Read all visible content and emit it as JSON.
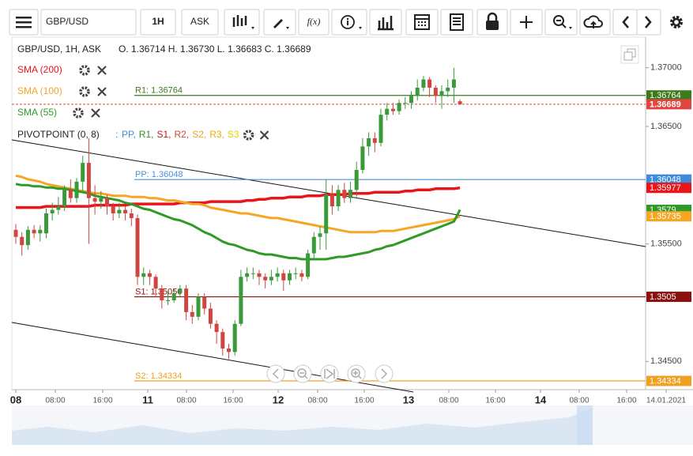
{
  "toolbar": {
    "symbol": "GBP/USD",
    "interval": "1H",
    "side": "ASK"
  },
  "chart_data": {
    "type": "candlestick",
    "title": "GBP/USD, 1H, ASK",
    "ohlc_text": "O. 1.36714 H. 1.36730 L. 1.36683 C. 1.36689",
    "up_color": "#3a9a3a",
    "down_color": "#d0453f",
    "ylim": [
      1.3426,
      1.3726
    ],
    "yticks": [
      {
        "value": 1.345,
        "label": "1.34500"
      },
      {
        "value": 1.355,
        "label": "1.35500"
      },
      {
        "value": 1.365,
        "label": "1.36500"
      },
      {
        "value": 1.37,
        "label": "1.37000"
      }
    ],
    "x_labels": [
      "08",
      "08:00",
      "16:00",
      "11",
      "08:00",
      "16:00",
      "12",
      "08:00",
      "16:00",
      "13",
      "08:00",
      "16:00",
      "14",
      "08:00",
      "16:00",
      "14.01.2021"
    ],
    "candles": [
      [
        1.3562,
        1.3567,
        1.355,
        1.3556
      ],
      [
        1.3556,
        1.356,
        1.354,
        1.3549
      ],
      [
        1.3549,
        1.3565,
        1.3545,
        1.3562
      ],
      [
        1.3562,
        1.3566,
        1.3555,
        1.3559
      ],
      [
        1.3559,
        1.3566,
        1.3552,
        1.3562
      ],
      [
        1.3559,
        1.358,
        1.3555,
        1.3576
      ],
      [
        1.3576,
        1.3585,
        1.357,
        1.3579
      ],
      [
        1.3579,
        1.359,
        1.3575,
        1.3582
      ],
      [
        1.3582,
        1.36,
        1.3578,
        1.3596
      ],
      [
        1.3596,
        1.3605,
        1.3585,
        1.3589
      ],
      [
        1.3589,
        1.3606,
        1.3585,
        1.3603
      ],
      [
        1.3603,
        1.3625,
        1.3595,
        1.3619
      ],
      [
        1.3619,
        1.364,
        1.355,
        1.3589
      ],
      [
        1.3589,
        1.36,
        1.3575,
        1.3586
      ],
      [
        1.3586,
        1.3595,
        1.358,
        1.3589
      ],
      [
        1.3589,
        1.3592,
        1.3575,
        1.3582
      ],
      [
        1.3582,
        1.3585,
        1.357,
        1.3576
      ],
      [
        1.3576,
        1.3585,
        1.3572,
        1.3579
      ],
      [
        1.3579,
        1.3582,
        1.357,
        1.3576
      ],
      [
        1.3576,
        1.358,
        1.3565,
        1.3572
      ],
      [
        1.3572,
        1.3575,
        1.3515,
        1.3522
      ],
      [
        1.3522,
        1.353,
        1.3515,
        1.3525
      ],
      [
        1.3525,
        1.3528,
        1.3515,
        1.3522
      ],
      [
        1.3522,
        1.3524,
        1.3505,
        1.3512
      ],
      [
        1.3512,
        1.3515,
        1.3495,
        1.3502
      ],
      [
        1.3502,
        1.351,
        1.3498,
        1.3502
      ],
      [
        1.3502,
        1.3512,
        1.35,
        1.3508
      ],
      [
        1.3508,
        1.3515,
        1.3505,
        1.3512
      ],
      [
        1.3512,
        1.3515,
        1.3485,
        1.3492
      ],
      [
        1.3492,
        1.3498,
        1.3482,
        1.3488
      ],
      [
        1.3488,
        1.3508,
        1.3485,
        1.3505
      ],
      [
        1.3505,
        1.3508,
        1.349,
        1.3495
      ],
      [
        1.3495,
        1.35,
        1.3478,
        1.3482
      ],
      [
        1.3482,
        1.3485,
        1.3465,
        1.3475
      ],
      [
        1.3475,
        1.3478,
        1.3455,
        1.3461
      ],
      [
        1.3461,
        1.3465,
        1.3452,
        1.3458
      ],
      [
        1.3458,
        1.3485,
        1.3455,
        1.3482
      ],
      [
        1.3482,
        1.3528,
        1.348,
        1.3522
      ],
      [
        1.3522,
        1.353,
        1.3518,
        1.3525
      ],
      [
        1.3525,
        1.353,
        1.352,
        1.3525
      ],
      [
        1.3525,
        1.3528,
        1.3515,
        1.3522
      ],
      [
        1.3522,
        1.3525,
        1.3512,
        1.3519
      ],
      [
        1.3519,
        1.3528,
        1.3515,
        1.3522
      ],
      [
        1.3522,
        1.353,
        1.3518,
        1.3525
      ],
      [
        1.3525,
        1.3528,
        1.351,
        1.3519
      ],
      [
        1.3519,
        1.3528,
        1.3515,
        1.3525
      ],
      [
        1.3525,
        1.353,
        1.352,
        1.3525
      ],
      [
        1.3525,
        1.3528,
        1.3518,
        1.3522
      ],
      [
        1.3522,
        1.3545,
        1.352,
        1.3542
      ],
      [
        1.3542,
        1.356,
        1.3538,
        1.3556
      ],
      [
        1.3556,
        1.3565,
        1.3545,
        1.3559
      ],
      [
        1.3559,
        1.3605,
        1.3545,
        1.3592
      ],
      [
        1.3592,
        1.36,
        1.3575,
        1.3582
      ],
      [
        1.3582,
        1.36,
        1.3578,
        1.3596
      ],
      [
        1.3596,
        1.3602,
        1.3585,
        1.3589
      ],
      [
        1.3589,
        1.3603,
        1.3585,
        1.3596
      ],
      [
        1.3596,
        1.362,
        1.359,
        1.3613
      ],
      [
        1.3613,
        1.364,
        1.361,
        1.3633
      ],
      [
        1.3633,
        1.3645,
        1.3625,
        1.364
      ],
      [
        1.364,
        1.3645,
        1.3628,
        1.3636
      ],
      [
        1.3636,
        1.3665,
        1.3633,
        1.366
      ],
      [
        1.366,
        1.367,
        1.3655,
        1.3665
      ],
      [
        1.3665,
        1.367,
        1.366,
        1.3663
      ],
      [
        1.3663,
        1.3673,
        1.366,
        1.367
      ],
      [
        1.367,
        1.3675,
        1.3665,
        1.367
      ],
      [
        1.367,
        1.368,
        1.3665,
        1.3676
      ],
      [
        1.3676,
        1.369,
        1.3672,
        1.3683
      ],
      [
        1.3683,
        1.3693,
        1.368,
        1.369
      ],
      [
        1.369,
        1.3692,
        1.3675,
        1.3683
      ],
      [
        1.3683,
        1.3685,
        1.367,
        1.3676
      ],
      [
        1.3676,
        1.3685,
        1.3665,
        1.368
      ],
      [
        1.368,
        1.369,
        1.3675,
        1.3683
      ],
      [
        1.3683,
        1.37,
        1.367,
        1.369
      ],
      [
        1.36714,
        1.3673,
        1.36683,
        1.36689
      ]
    ],
    "series": [
      {
        "name": "SMA (200)",
        "color": "#e8151b",
        "width": 3.5,
        "values": [
          1.3581,
          1.3581,
          1.3581,
          1.3581,
          1.3581,
          1.3582,
          1.3582,
          1.3582,
          1.3582,
          1.3582,
          1.3582,
          1.3582,
          1.3582,
          1.3583,
          1.3583,
          1.3583,
          1.3583,
          1.3583,
          1.3583,
          1.3584,
          1.3584,
          1.3584,
          1.3584,
          1.3584,
          1.3584,
          1.3584,
          1.3584,
          1.3585,
          1.3585,
          1.3585,
          1.3585,
          1.3585,
          1.3586,
          1.3586,
          1.3586,
          1.3586,
          1.3586,
          1.3586,
          1.3587,
          1.3587,
          1.3588,
          1.3588,
          1.3589,
          1.3589,
          1.3589,
          1.359,
          1.359,
          1.359,
          1.3591,
          1.3591,
          1.3591,
          1.3592,
          1.3592,
          1.3592,
          1.3592,
          1.3593,
          1.3593,
          1.3593,
          1.3593,
          1.3594,
          1.3594,
          1.3594,
          1.3594,
          1.3594,
          1.3595,
          1.3595,
          1.3596,
          1.3596,
          1.3596,
          1.3597,
          1.3597,
          1.3597,
          1.3597,
          1.35977
        ]
      },
      {
        "name": "SMA (100)",
        "color": "#f6a623",
        "width": 3,
        "values": [
          1.3608,
          1.3607,
          1.3605,
          1.3604,
          1.3603,
          1.3601,
          1.36,
          1.3599,
          1.3598,
          1.3597,
          1.3596,
          1.3595,
          1.3594,
          1.3593,
          1.3593,
          1.3592,
          1.3591,
          1.3591,
          1.3591,
          1.359,
          1.359,
          1.359,
          1.3589,
          1.3589,
          1.3588,
          1.3587,
          1.3587,
          1.3586,
          1.3585,
          1.3584,
          1.3584,
          1.3583,
          1.3581,
          1.358,
          1.3579,
          1.3578,
          1.3577,
          1.3576,
          1.3576,
          1.3575,
          1.3574,
          1.3573,
          1.3572,
          1.3572,
          1.3571,
          1.357,
          1.3569,
          1.3568,
          1.3567,
          1.3566,
          1.3565,
          1.3564,
          1.3563,
          1.3562,
          1.3561,
          1.356,
          1.356,
          1.356,
          1.356,
          1.356,
          1.3561,
          1.3561,
          1.3561,
          1.3562,
          1.3563,
          1.3564,
          1.3565,
          1.3566,
          1.3567,
          1.3568,
          1.3569,
          1.357,
          1.3571,
          1.35735
        ]
      },
      {
        "name": "SMA (55)",
        "color": "#2f9a26",
        "width": 3,
        "values": [
          1.3601,
          1.36,
          1.36,
          1.3599,
          1.3599,
          1.3598,
          1.3598,
          1.3597,
          1.3597,
          1.3596,
          1.3595,
          1.3594,
          1.3593,
          1.3591,
          1.359,
          1.3589,
          1.3588,
          1.3587,
          1.3585,
          1.3584,
          1.3582,
          1.358,
          1.3579,
          1.3577,
          1.3575,
          1.3573,
          1.3571,
          1.357,
          1.3568,
          1.3566,
          1.3563,
          1.356,
          1.3558,
          1.3555,
          1.3552,
          1.355,
          1.3549,
          1.3547,
          1.3545,
          1.3544,
          1.3542,
          1.3541,
          1.3541,
          1.354,
          1.3539,
          1.3538,
          1.3538,
          1.3537,
          1.3537,
          1.3537,
          1.3537,
          1.3537,
          1.3538,
          1.3539,
          1.3539,
          1.354,
          1.3541,
          1.3542,
          1.3543,
          1.3545,
          1.3546,
          1.3548,
          1.3549,
          1.3551,
          1.3553,
          1.3555,
          1.3557,
          1.3559,
          1.3561,
          1.3563,
          1.3565,
          1.3567,
          1.3569,
          1.3579
        ]
      }
    ],
    "indicator": {
      "name": "PIVOTPOINT (0, 8)",
      "prefix": ":",
      "levels": [
        {
          "name": "PP,",
          "color": "#3d8bd9"
        },
        {
          "name": "R1,",
          "color": "#3a8a1f"
        },
        {
          "name": "S1,",
          "color": "#c21a1a"
        },
        {
          "name": "R2,",
          "color": "#d0453f"
        },
        {
          "name": "S2,",
          "color": "#f0a020"
        },
        {
          "name": "R3,",
          "color": "#e8b000"
        },
        {
          "name": "S3",
          "color": "#e8d000"
        }
      ]
    },
    "pivots": [
      {
        "label": "R1: 1.36764",
        "value": 1.36764,
        "color": "#3d7a1a"
      },
      {
        "label": "PP: 1.36048",
        "value": 1.36048,
        "color": "#4a90d9"
      },
      {
        "label": "S1: 1.35050",
        "value": 1.3505,
        "color": "#8b1010"
      },
      {
        "label": "S2: 1.34334",
        "value": 1.34334,
        "color": "#f0a020"
      }
    ],
    "current_price": 1.36689,
    "current_color": "#e0463f",
    "price_tags": [
      {
        "value": 1.36764,
        "color": "#3d7a1a"
      },
      {
        "value": 1.36689,
        "color": "#e0463f"
      },
      {
        "value": 1.36048,
        "color": "#3d8bd9"
      },
      {
        "value": 1.35977,
        "color": "#e8151b"
      },
      {
        "value": 1.3579,
        "color": "#2f9a26"
      },
      {
        "value": 1.35735,
        "color": "#f6a623"
      },
      {
        "value": 1.3505,
        "color": "#8b1010"
      },
      {
        "value": 1.34334,
        "color": "#f0a020"
      }
    ]
  }
}
